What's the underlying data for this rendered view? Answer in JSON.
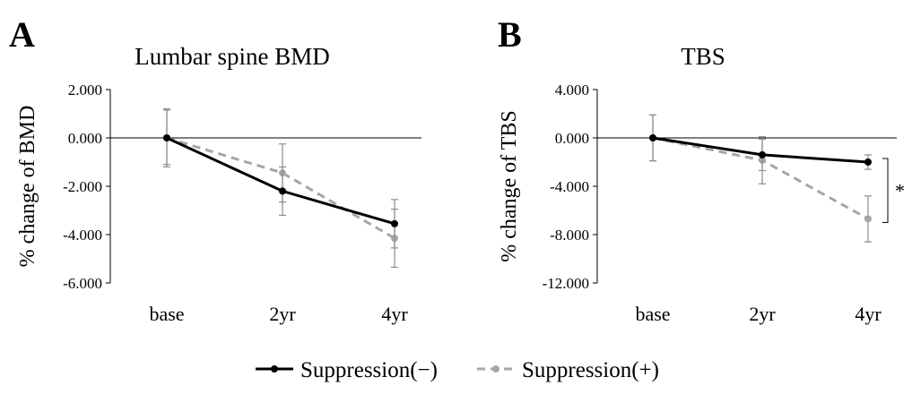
{
  "figure": {
    "legend": [
      {
        "label": "Suppression(−)",
        "color": "#000000",
        "dash": false
      },
      {
        "label": "Suppression(+)",
        "color": "#a6a6a6",
        "dash": true
      }
    ]
  },
  "chart_data": [
    {
      "type": "line",
      "panel": "A",
      "title": "Lumbar spine BMD",
      "xlabel": "",
      "ylabel": "% change of BMD",
      "categories": [
        "base",
        "2yr",
        "4yr"
      ],
      "ylim": [
        -6,
        2
      ],
      "yticks": [
        2,
        0,
        -2,
        -4,
        -6
      ],
      "ytick_labels": [
        "2.000",
        "0.000",
        "-2.000",
        "-4.000",
        "-6.000"
      ],
      "series": [
        {
          "name": "Suppression(−)",
          "color": "#000000",
          "values": [
            0,
            -2.2,
            -3.55
          ],
          "err_low": [
            -1.1,
            -3.2,
            -4.55
          ],
          "err_high": [
            1.2,
            -1.2,
            -2.55
          ]
        },
        {
          "name": "Suppression(+)",
          "color": "#a6a6a6",
          "values": [
            0,
            -1.45,
            -4.15
          ],
          "err_low": [
            -1.2,
            -2.65,
            -5.35
          ],
          "err_high": [
            1.15,
            -0.25,
            -2.95
          ]
        }
      ],
      "annotation": ""
    },
    {
      "type": "line",
      "panel": "B",
      "title": "TBS",
      "xlabel": "",
      "ylabel": "% change of TBS",
      "categories": [
        "base",
        "2yr",
        "4yr"
      ],
      "ylim": [
        -12,
        4
      ],
      "yticks": [
        4,
        0,
        -4,
        -8,
        -12
      ],
      "ytick_labels": [
        "4.000",
        "0.000",
        "-4.000",
        "-8.000",
        "-12.000"
      ],
      "series": [
        {
          "name": "Suppression(−)",
          "color": "#000000",
          "values": [
            0,
            -1.4,
            -2.0
          ],
          "err_low": [
            -1.9,
            -2.7,
            -2.6
          ],
          "err_high": [
            1.9,
            -0.1,
            -1.4
          ]
        },
        {
          "name": "Suppression(+)",
          "color": "#a6a6a6",
          "values": [
            0,
            -1.85,
            -6.7
          ],
          "err_low": [
            -1.9,
            -3.8,
            -8.6
          ],
          "err_high": [
            1.9,
            0.1,
            -4.8
          ]
        }
      ],
      "annotation": "*"
    }
  ]
}
